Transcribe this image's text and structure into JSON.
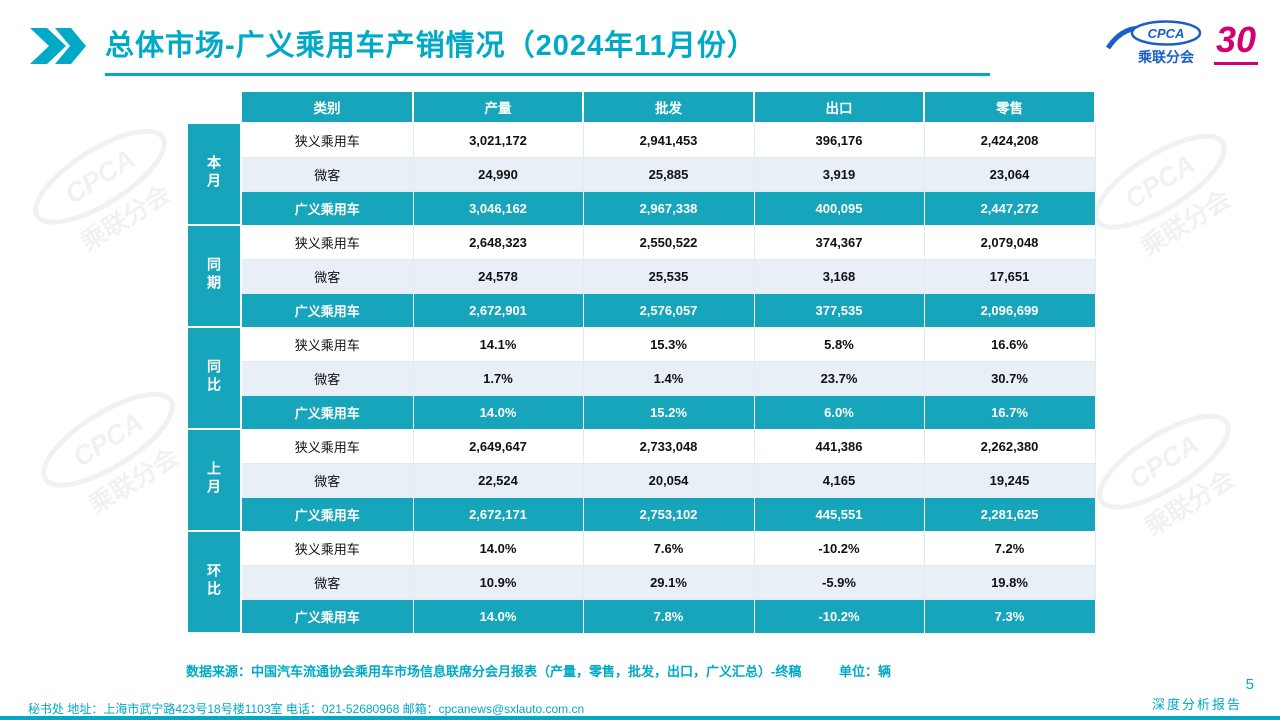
{
  "colors": {
    "accent": "#00A9C6",
    "table_header": "#17A5BB",
    "row_alt": "#E9EFF7",
    "logo_blue": "#1A5FC8",
    "magenta": "#D4006E"
  },
  "header": {
    "title": "总体市场-广义乘用车产销情况（2024年11月份）"
  },
  "logo": {
    "cpca": "CPCA",
    "sub": "乘联分会",
    "anniversary": "30"
  },
  "table": {
    "columns": [
      "类别",
      "产量",
      "批发",
      "出口",
      "零售"
    ],
    "groups": [
      {
        "label": "本月",
        "rows": [
          {
            "category": "狭义乘用车",
            "values": [
              "3,021,172",
              "2,941,453",
              "396,176",
              "2,424,208"
            ],
            "highlight": false
          },
          {
            "category": "微客",
            "values": [
              "24,990",
              "25,885",
              "3,919",
              "23,064"
            ],
            "highlight": false
          },
          {
            "category": "广义乘用车",
            "values": [
              "3,046,162",
              "2,967,338",
              "400,095",
              "2,447,272"
            ],
            "highlight": true
          }
        ]
      },
      {
        "label": "同期",
        "rows": [
          {
            "category": "狭义乘用车",
            "values": [
              "2,648,323",
              "2,550,522",
              "374,367",
              "2,079,048"
            ],
            "highlight": false
          },
          {
            "category": "微客",
            "values": [
              "24,578",
              "25,535",
              "3,168",
              "17,651"
            ],
            "highlight": false
          },
          {
            "category": "广义乘用车",
            "values": [
              "2,672,901",
              "2,576,057",
              "377,535",
              "2,096,699"
            ],
            "highlight": true
          }
        ]
      },
      {
        "label": "同比",
        "rows": [
          {
            "category": "狭义乘用车",
            "values": [
              "14.1%",
              "15.3%",
              "5.8%",
              "16.6%"
            ],
            "highlight": false
          },
          {
            "category": "微客",
            "values": [
              "1.7%",
              "1.4%",
              "23.7%",
              "30.7%"
            ],
            "highlight": false
          },
          {
            "category": "广义乘用车",
            "values": [
              "14.0%",
              "15.2%",
              "6.0%",
              "16.7%"
            ],
            "highlight": true
          }
        ]
      },
      {
        "label": "上月",
        "rows": [
          {
            "category": "狭义乘用车",
            "values": [
              "2,649,647",
              "2,733,048",
              "441,386",
              "2,262,380"
            ],
            "highlight": false
          },
          {
            "category": "微客",
            "values": [
              "22,524",
              "20,054",
              "4,165",
              "19,245"
            ],
            "highlight": false
          },
          {
            "category": "广义乘用车",
            "values": [
              "2,672,171",
              "2,753,102",
              "445,551",
              "2,281,625"
            ],
            "highlight": true
          }
        ]
      },
      {
        "label": "环比",
        "rows": [
          {
            "category": "狭义乘用车",
            "values": [
              "14.0%",
              "7.6%",
              "-10.2%",
              "7.2%"
            ],
            "highlight": false
          },
          {
            "category": "微客",
            "values": [
              "10.9%",
              "29.1%",
              "-5.9%",
              "19.8%"
            ],
            "highlight": false
          },
          {
            "category": "广义乘用车",
            "values": [
              "14.0%",
              "7.8%",
              "-10.2%",
              "7.3%"
            ],
            "highlight": true
          }
        ]
      }
    ]
  },
  "footnote": {
    "source": "数据来源：中国汽车流通协会乘用车市场信息联席分会月报表（产量，零售，批发，出口，广义汇总）-终稿",
    "unit": "单位：辆"
  },
  "footer": {
    "contact": "秘书处  地址：上海市武宁路423号18号楼1103室  电话：021-52680968  邮箱：cpcanews@sxlauto.com.cn",
    "report": "深度分析报告",
    "page": "5"
  }
}
